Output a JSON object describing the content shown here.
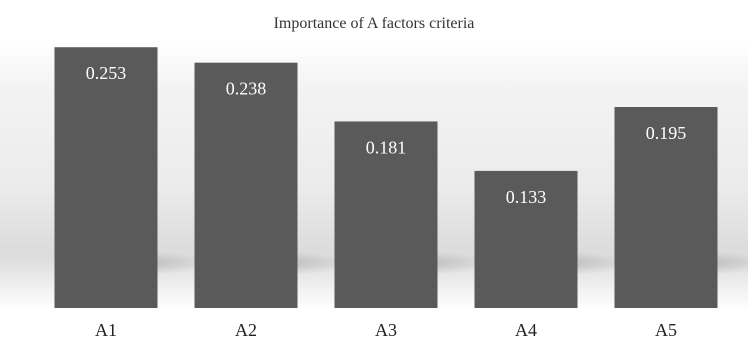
{
  "chart_data": {
    "type": "bar",
    "title": "Importance of A factors criteria",
    "categories": [
      "A1",
      "A2",
      "A3",
      "A4",
      "A5"
    ],
    "values": [
      0.253,
      0.238,
      0.181,
      0.133,
      0.195
    ],
    "data_labels": [
      "0.253",
      "0.238",
      "0.181",
      "0.133",
      "0.195"
    ],
    "xlabel": "",
    "ylabel": "",
    "ylim": [
      0,
      0.26
    ],
    "grid": false,
    "legend": "none",
    "colors": {
      "bar": "#5a5a5b",
      "background_band": "#e6e6e6",
      "label_inside": "#ffffff",
      "text": "#333333"
    }
  }
}
